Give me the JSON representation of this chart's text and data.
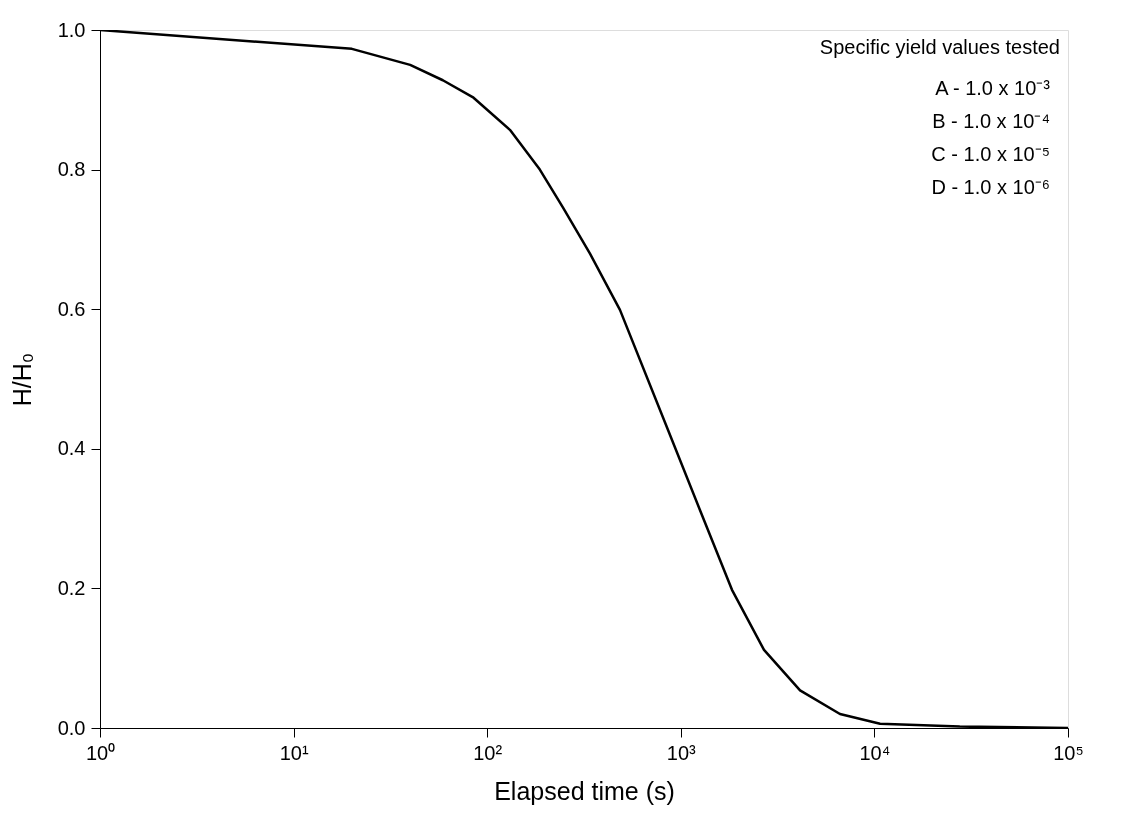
{
  "chart_data": {
    "type": "line",
    "xlabel": "Elapsed time (s)",
    "ylabel": "H/H₀",
    "x": [
      1,
      20,
      40,
      59,
      85,
      131,
      187,
      246,
      339,
      485,
      859,
      1257,
      1838,
      2690,
      4130,
      6640,
      10700,
      27600,
      100000
    ],
    "series": [
      {
        "color": "#000000",
        "values": [
          1.0,
          0.973,
          0.95,
          0.928,
          0.903,
          0.857,
          0.8,
          0.746,
          0.68,
          0.599,
          0.427,
          0.312,
          0.198,
          0.112,
          0.054,
          0.02,
          0.006,
          0.002,
          0.0
        ]
      }
    ],
    "log": "x",
    "xlim": [
      1,
      100000
    ],
    "xticks": [
      {
        "value": 1,
        "label": "10⁰"
      },
      {
        "value": 10,
        "label": "10¹"
      },
      {
        "value": 100,
        "label": "10²"
      },
      {
        "value": 1000,
        "label": "10³"
      },
      {
        "value": 10000,
        "label": "10⁴"
      },
      {
        "value": 100000,
        "label": "10⁵"
      }
    ],
    "ylim": [
      0,
      1
    ],
    "yticks": [
      {
        "value": 0,
        "label": "0.0"
      },
      {
        "value": 0.2,
        "label": "0.2"
      },
      {
        "value": 0.4,
        "label": "0.4"
      },
      {
        "value": 0.6,
        "label": "0.6"
      },
      {
        "value": 0.8,
        "label": "0.8"
      },
      {
        "value": 1,
        "label": "1.0"
      }
    ],
    "grid": false,
    "legend": false,
    "marker": "none",
    "line_style": "solid",
    "annotations": [
      "Specific yield values tested",
      "A - 1.0 x 10⁻³",
      "B - 1.0 x 10⁻⁴",
      "C - 1.0 x 10⁻⁵",
      "D - 1.0 x 10⁻⁶"
    ]
  }
}
